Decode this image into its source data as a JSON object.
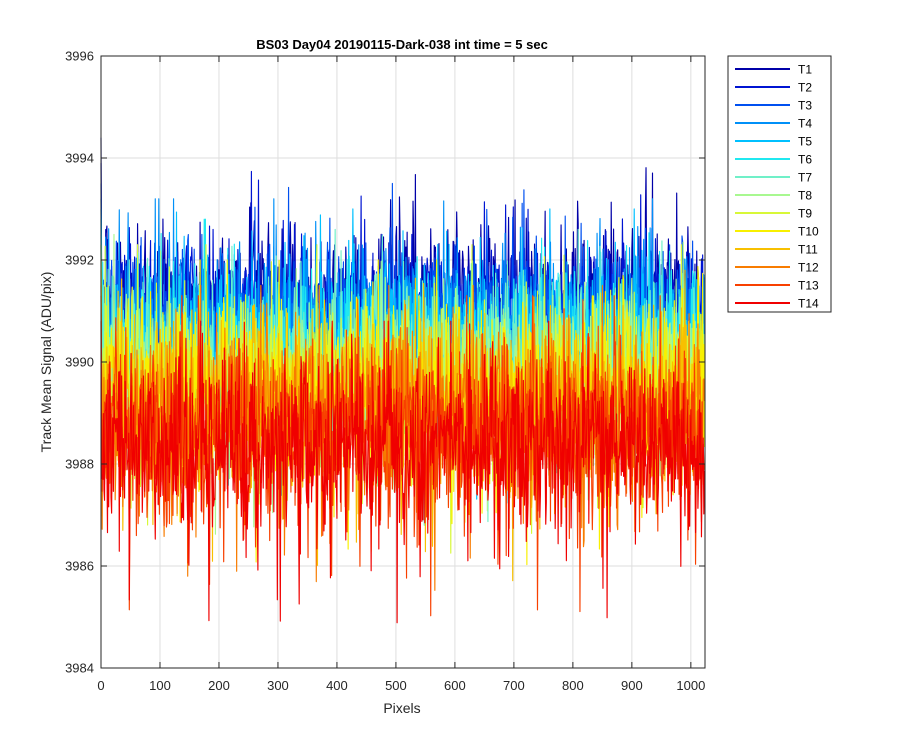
{
  "chart_data": {
    "type": "line",
    "title": "BS03 Day04 20190115-Dark-038 int time = 5 sec",
    "xlabel": "Pixels",
    "ylabel": "Track Mean Signal (ADU/pix)",
    "xlim": [
      0,
      1024
    ],
    "ylim": [
      3984,
      3996
    ],
    "xticks": [
      0,
      100,
      200,
      300,
      400,
      500,
      600,
      700,
      800,
      900,
      1000
    ],
    "yticks": [
      3984,
      3986,
      3988,
      3990,
      3992,
      3994,
      3996
    ],
    "grid": true,
    "legend_position": "outside top-right",
    "x_range": [
      0,
      1023
    ],
    "series": [
      {
        "name": "T1",
        "color": "#0000a8",
        "mean": 3991.2,
        "spread": 0.7,
        "start": 3994.9,
        "max": 3994.4,
        "min": 3989.6
      },
      {
        "name": "T2",
        "color": "#0014d2",
        "mean": 3991.0,
        "spread": 0.7,
        "start": 3994.5,
        "max": 3993.9,
        "min": 3989.3
      },
      {
        "name": "T3",
        "color": "#0050f0",
        "mean": 3990.8,
        "spread": 0.72,
        "start": 3993.6,
        "max": 3993.5,
        "min": 3989.0
      },
      {
        "name": "T4",
        "color": "#0090f8",
        "mean": 3990.6,
        "spread": 0.74,
        "start": 3993.3,
        "max": 3993.2,
        "min": 3988.7
      },
      {
        "name": "T5",
        "color": "#00c0ff",
        "mean": 3990.3,
        "spread": 0.76,
        "start": 3993.0,
        "max": 3993.0,
        "min": 3986.0
      },
      {
        "name": "T6",
        "color": "#20e8f0",
        "mean": 3990.1,
        "spread": 0.78,
        "start": 3992.9,
        "max": 3992.8,
        "min": 3986.0
      },
      {
        "name": "T7",
        "color": "#70f0c8",
        "mean": 3989.9,
        "spread": 0.8,
        "start": 3992.5,
        "max": 3992.6,
        "min": 3986.0
      },
      {
        "name": "T8",
        "color": "#a8f890",
        "mean": 3989.7,
        "spread": 0.82,
        "start": 3992.3,
        "max": 3992.5,
        "min": 3986.0
      },
      {
        "name": "T9",
        "color": "#d8f838",
        "mean": 3989.5,
        "spread": 0.84,
        "start": 3994.2,
        "max": 3992.3,
        "min": 3985.3
      },
      {
        "name": "T10",
        "color": "#f8f000",
        "mean": 3989.3,
        "spread": 0.86,
        "start": 3993.8,
        "max": 3992.0,
        "min": 3985.3
      },
      {
        "name": "T11",
        "color": "#f8c000",
        "mean": 3989.1,
        "spread": 0.88,
        "start": 3993.4,
        "max": 3991.8,
        "min": 3985.3
      },
      {
        "name": "T12",
        "color": "#f87c00",
        "mean": 3988.9,
        "spread": 0.88,
        "start": 3993.0,
        "max": 3991.5,
        "min": 3984.9
      },
      {
        "name": "T13",
        "color": "#f84000",
        "mean": 3988.6,
        "spread": 0.9,
        "start": 3993.2,
        "max": 3991.3,
        "min": 3984.9
      },
      {
        "name": "T14",
        "color": "#f00000",
        "mean": 3988.4,
        "spread": 0.92,
        "start": 3991.8,
        "max": 3990.8,
        "min": 3984.2
      }
    ]
  }
}
